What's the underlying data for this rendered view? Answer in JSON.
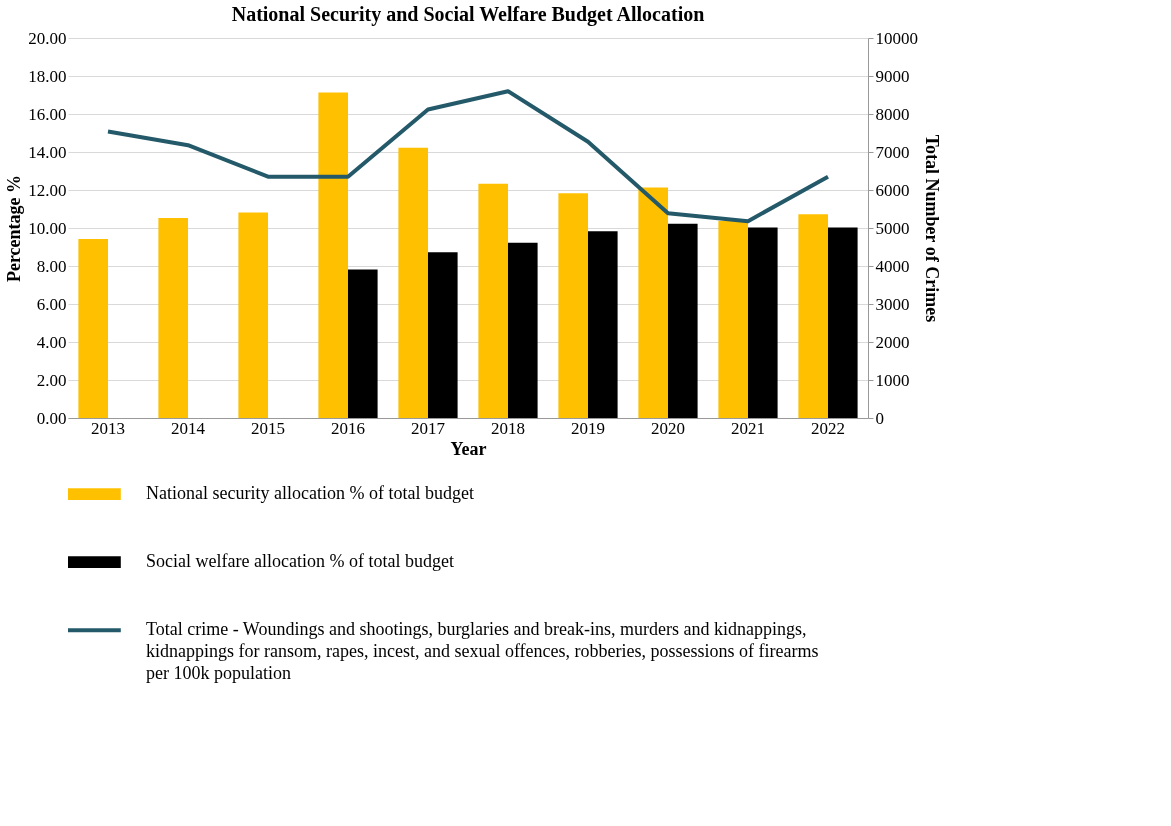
{
  "chart_data": {
    "type": "bar",
    "title": "National  Security and  Social Welfare Budget  Allocation",
    "xlabel": "Year",
    "ylabel": "Percentage %",
    "y2label": "Total Number of Crimes",
    "categories": [
      "2013",
      "2014",
      "2015",
      "2016",
      "2017",
      "2018",
      "2019",
      "2020",
      "2021",
      "2022"
    ],
    "series": [
      {
        "name": "National security allocation  % of total budget",
        "color": "#ffc000",
        "values": [
          9.42,
          10.53,
          10.82,
          17.13,
          14.23,
          12.33,
          11.83,
          12.13,
          10.37,
          10.73
        ]
      },
      {
        "name": "Social  welfare allocation % of total budget",
        "color": "#000000",
        "values": [
          null,
          null,
          null,
          7.82,
          8.72,
          9.22,
          9.83,
          10.22,
          10.03,
          10.03
        ]
      },
      {
        "name": "Total crime  - Woundings and shootings, burglaries  and break-ins, murders and kidnappings, kidnappings for ransom, rapes, incest, and sexual offences, robberies, possessions of firearms per 100k population",
        "color": "#24596a",
        "type": "line",
        "axis": "y2",
        "values": [
          7540,
          7180,
          6350,
          6350,
          8120,
          8600,
          7270,
          5390,
          5180,
          6350
        ]
      }
    ],
    "ylim": [
      0,
      20
    ],
    "yticks": [
      {
        "value": 0,
        "label": "0.00"
      },
      {
        "value": 2,
        "label": "2.00"
      },
      {
        "value": 4,
        "label": "4.00"
      },
      {
        "value": 6,
        "label": "6.00"
      },
      {
        "value": 8,
        "label": "8.00"
      },
      {
        "value": 10,
        "label": "10.00"
      },
      {
        "value": 12,
        "label": "12.00"
      },
      {
        "value": 14,
        "label": "14.00"
      },
      {
        "value": 16,
        "label": "16.00"
      },
      {
        "value": 18,
        "label": "18.00"
      },
      {
        "value": 20,
        "label": "20.00"
      }
    ],
    "y2lim": [
      0,
      10000
    ],
    "y2ticks": [
      0,
      1000,
      2000,
      3000,
      4000,
      5000,
      6000,
      7000,
      8000,
      9000,
      10000
    ],
    "grid": "y",
    "legend": "bottom"
  }
}
